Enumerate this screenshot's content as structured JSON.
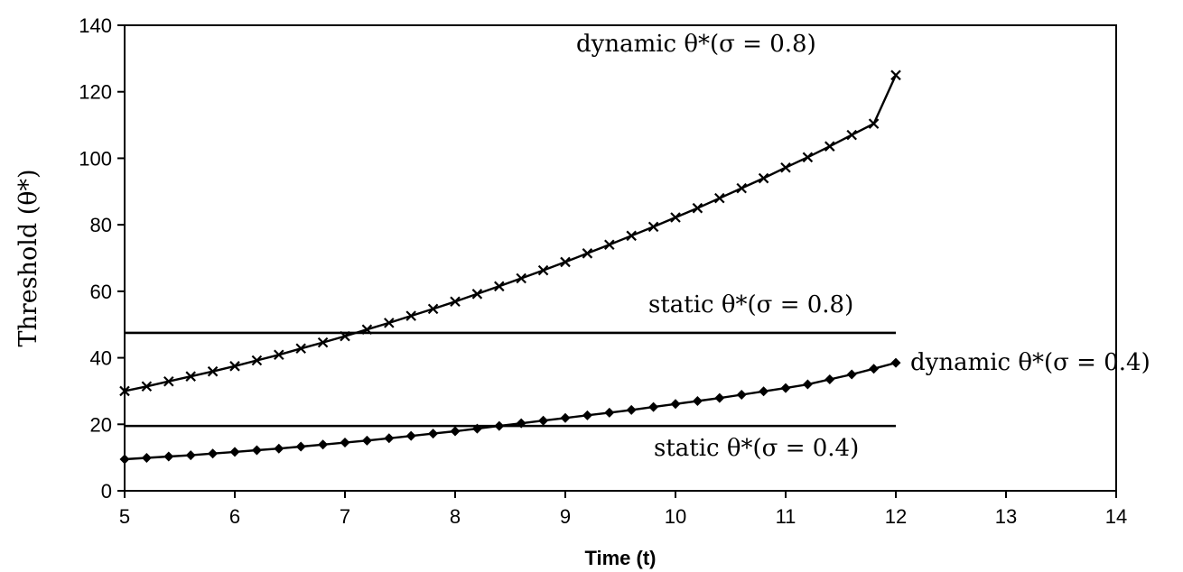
{
  "chart_data": {
    "type": "line",
    "title": "",
    "xlabel": "Time (t)",
    "ylabel": "Threshold (θ*)",
    "xlim": [
      5,
      14
    ],
    "ylim": [
      0,
      140
    ],
    "xticks": [
      5,
      6,
      7,
      8,
      9,
      10,
      11,
      12,
      13,
      14
    ],
    "yticks": [
      0,
      20,
      40,
      60,
      80,
      100,
      120,
      140
    ],
    "grid": false,
    "series": [
      {
        "name": "dynamic θ*(σ = 0.8)",
        "marker": "x",
        "x": [
          5.0,
          5.2,
          5.4,
          5.6,
          5.8,
          6.0,
          6.2,
          6.4,
          6.6,
          6.8,
          7.0,
          7.2,
          7.4,
          7.6,
          7.8,
          8.0,
          8.2,
          8.4,
          8.6,
          8.8,
          9.0,
          9.2,
          9.4,
          9.6,
          9.8,
          10.0,
          10.2,
          10.4,
          10.6,
          10.8,
          11.0,
          11.2,
          11.4,
          11.6,
          11.8,
          12.0
        ],
        "y": [
          30.0,
          31.4,
          32.9,
          34.4,
          35.9,
          37.5,
          39.2,
          40.9,
          42.8,
          44.6,
          46.5,
          48.5,
          50.5,
          52.6,
          54.7,
          56.9,
          59.2,
          61.5,
          63.9,
          66.3,
          68.8,
          71.4,
          74.0,
          76.7,
          79.4,
          82.2,
          85.0,
          88.0,
          91.0,
          94.0,
          97.2,
          100.3,
          103.6,
          107.0,
          110.4,
          125.0
        ]
      },
      {
        "name": "dynamic θ*(σ = 0.4)",
        "marker": "diamond",
        "x": [
          5.0,
          5.2,
          5.4,
          5.6,
          5.8,
          6.0,
          6.2,
          6.4,
          6.6,
          6.8,
          7.0,
          7.2,
          7.4,
          7.6,
          7.8,
          8.0,
          8.2,
          8.4,
          8.6,
          8.8,
          9.0,
          9.2,
          9.4,
          9.6,
          9.8,
          10.0,
          10.2,
          10.4,
          10.6,
          10.8,
          11.0,
          11.2,
          11.4,
          11.6,
          11.8,
          12.0
        ],
        "y": [
          9.5,
          9.9,
          10.3,
          10.7,
          11.2,
          11.7,
          12.2,
          12.7,
          13.3,
          13.9,
          14.5,
          15.1,
          15.8,
          16.5,
          17.2,
          17.9,
          18.7,
          19.5,
          20.3,
          21.1,
          21.9,
          22.7,
          23.5,
          24.3,
          25.2,
          26.1,
          27.0,
          27.9,
          28.9,
          29.9,
          30.9,
          32.0,
          33.5,
          35.0,
          36.7,
          38.5
        ]
      },
      {
        "name": "static θ*(σ = 0.8)",
        "marker": "none",
        "x": [
          5,
          12
        ],
        "y": [
          47.5,
          47.5
        ]
      },
      {
        "name": "static θ*(σ = 0.4)",
        "marker": "none",
        "x": [
          5,
          12
        ],
        "y": [
          19.5,
          19.5
        ]
      }
    ]
  }
}
